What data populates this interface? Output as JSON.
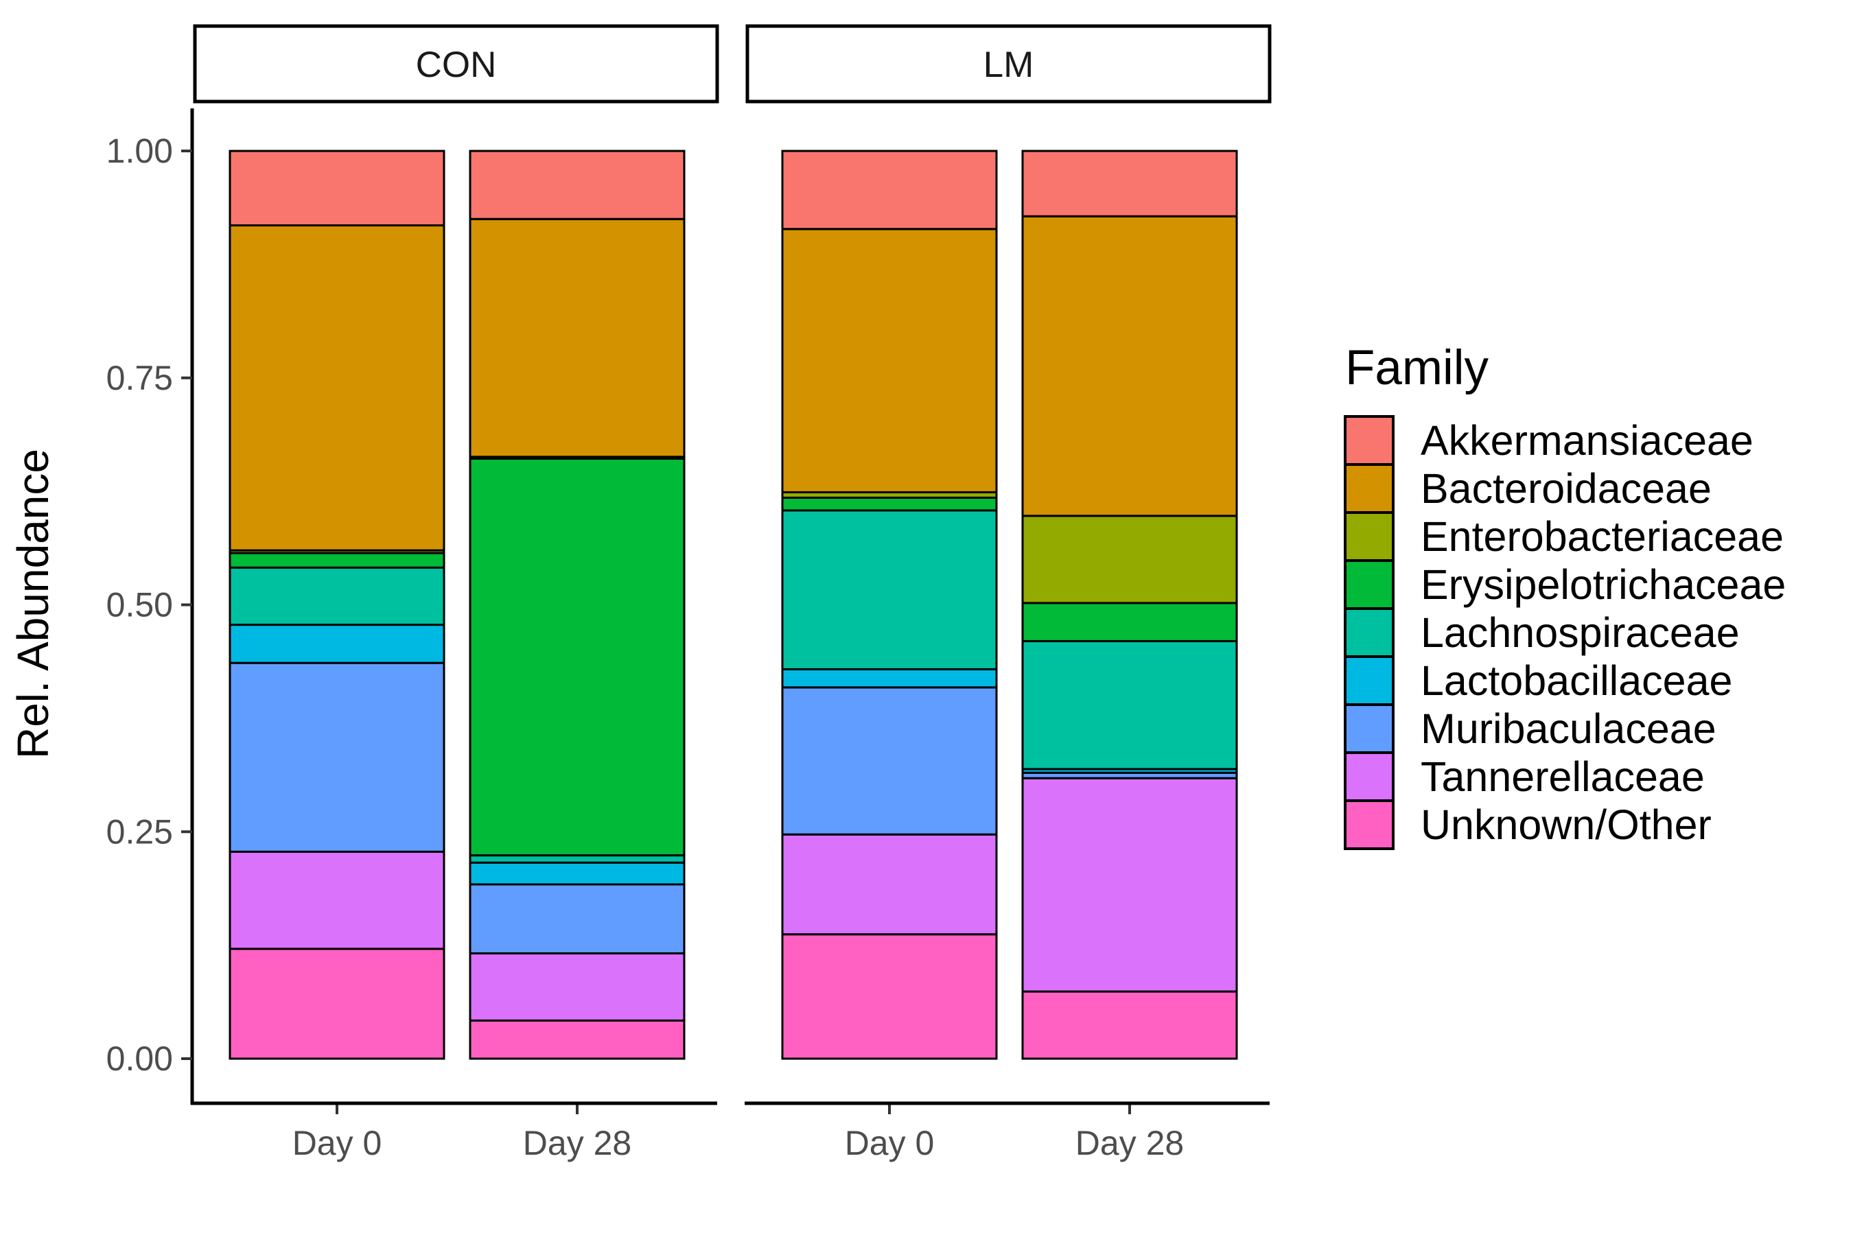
{
  "chart_data": {
    "type": "bar",
    "stacked": true,
    "ylabel": "Rel. Abundance",
    "xlabel": "",
    "ylim": [
      0,
      1
    ],
    "yticks": [
      "0.00",
      "0.25",
      "0.50",
      "0.75",
      "1.00"
    ],
    "grid": false,
    "legend": {
      "title": "Family",
      "position": "right",
      "entries": [
        "Akkermansiaceae",
        "Bacteroidaceae",
        "Enterobacteriaceae",
        "Erysipelotrichaceae",
        "Lachnospiraceae",
        "Lactobacillaceae",
        "Muribaculaceae",
        "Tannerellaceae",
        "Unknown/Other"
      ]
    },
    "colors": {
      "Akkermansiaceae": "#F8766D",
      "Bacteroidaceae": "#D39200",
      "Enterobacteriaceae": "#93AA00",
      "Erysipelotrichaceae": "#00BA38",
      "Lachnospiraceae": "#00C19F",
      "Lactobacillaceae": "#00B9E3",
      "Muribaculaceae": "#619CFF",
      "Tannerellaceae": "#DB72FB",
      "Unknown/Other": "#FF61C3"
    },
    "stack_order_bottom_to_top": [
      "Unknown/Other",
      "Tannerellaceae",
      "Muribaculaceae",
      "Lactobacillaceae",
      "Lachnospiraceae",
      "Erysipelotrichaceae",
      "Enterobacteriaceae",
      "Bacteroidaceae",
      "Akkermansiaceae"
    ],
    "panels": [
      {
        "name": "CON",
        "categories": [
          "Day 0",
          "Day 28"
        ],
        "values": {
          "Day 0": {
            "Unknown/Other": 0.121,
            "Tannerellaceae": 0.107,
            "Muribaculaceae": 0.208,
            "Lactobacillaceae": 0.042,
            "Lachnospiraceae": 0.063,
            "Erysipelotrichaceae": 0.016,
            "Enterobacteriaceae": 0.003,
            "Bacteroidaceae": 0.358,
            "Akkermansiaceae": 0.082
          },
          "Day 28": {
            "Unknown/Other": 0.042,
            "Tannerellaceae": 0.074,
            "Muribaculaceae": 0.076,
            "Lactobacillaceae": 0.024,
            "Lachnospiraceae": 0.008,
            "Erysipelotrichaceae": 0.437,
            "Enterobacteriaceae": 0.002,
            "Bacteroidaceae": 0.262,
            "Akkermansiaceae": 0.075
          }
        }
      },
      {
        "name": "LM",
        "categories": [
          "Day 0",
          "Day 28"
        ],
        "values": {
          "Day 0": {
            "Unknown/Other": 0.137,
            "Tannerellaceae": 0.11,
            "Muribaculaceae": 0.162,
            "Lactobacillaceae": 0.02,
            "Lachnospiraceae": 0.175,
            "Erysipelotrichaceae": 0.014,
            "Enterobacteriaceae": 0.006,
            "Bacteroidaceae": 0.29,
            "Akkermansiaceae": 0.086
          },
          "Day 28": {
            "Unknown/Other": 0.074,
            "Tannerellaceae": 0.235,
            "Muribaculaceae": 0.006,
            "Lactobacillaceae": 0.004,
            "Lachnospiraceae": 0.141,
            "Erysipelotrichaceae": 0.042,
            "Enterobacteriaceae": 0.096,
            "Bacteroidaceae": 0.33,
            "Akkermansiaceae": 0.072
          }
        }
      }
    ]
  }
}
